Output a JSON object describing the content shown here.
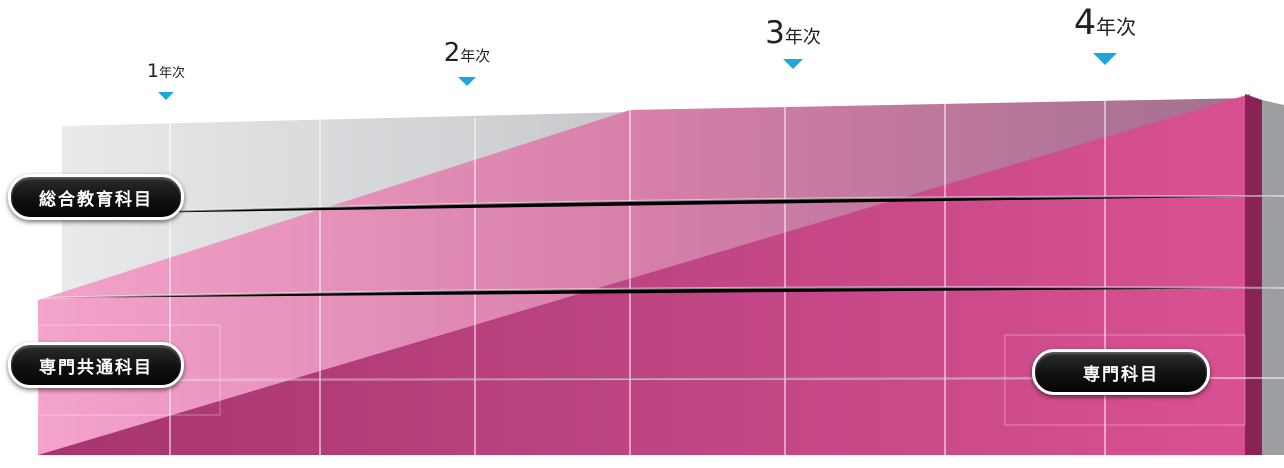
{
  "years": [
    {
      "num": "1",
      "unit": "年次"
    },
    {
      "num": "2",
      "unit": "年次"
    },
    {
      "num": "3",
      "unit": "年次"
    },
    {
      "num": "4",
      "unit": "年次"
    }
  ],
  "labels": {
    "general": "総合教育科目",
    "common": "専門共通科目",
    "major": "専門科目"
  },
  "colors": {
    "gray_band": "#d4d5d8",
    "pink_light": "#f09dc6",
    "magenta_dark": "#a52d6e",
    "marker": "#1ea6e0"
  }
}
